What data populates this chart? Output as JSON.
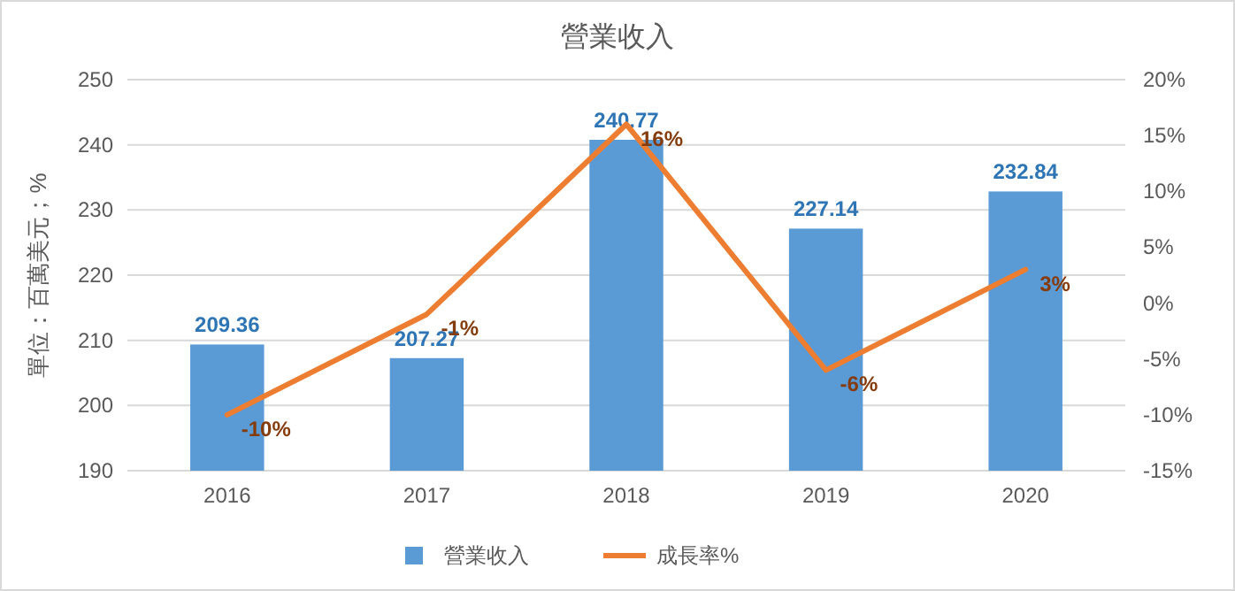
{
  "chart_data": {
    "type": "bar",
    "title": "營業收入",
    "ylabel": "單位：百萬美元；%",
    "categories": [
      "2016",
      "2017",
      "2018",
      "2019",
      "2020"
    ],
    "series": [
      {
        "name": "營業收入",
        "color": "#5b9bd5",
        "values": [
          209.36,
          207.27,
          240.77,
          227.14,
          232.84
        ],
        "value_labels": [
          "209.36",
          "207.27",
          "240.77",
          "227.14",
          "232.84"
        ]
      },
      {
        "name": "成長率%",
        "type": "line",
        "axis": "y2",
        "color": "#ed7d31",
        "values": [
          -10,
          -1,
          16,
          -6,
          3
        ],
        "value_labels": [
          "-10%",
          "-1%",
          "16%",
          "-6%",
          "3%"
        ]
      }
    ],
    "ylim": [
      190,
      250
    ],
    "yticks": [
      190,
      200,
      210,
      220,
      230,
      240,
      250
    ],
    "y2lim": [
      -15,
      20
    ],
    "y2ticks": [
      {
        "value": -15,
        "label": "-15%"
      },
      {
        "value": -10,
        "label": "-10%"
      },
      {
        "value": -5,
        "label": "-5%"
      },
      {
        "value": 0,
        "label": "0%"
      },
      {
        "value": 5,
        "label": "5%"
      },
      {
        "value": 10,
        "label": "10%"
      },
      {
        "value": 15,
        "label": "15%"
      },
      {
        "value": 20,
        "label": "20%"
      }
    ],
    "grid": "y",
    "legend": "bottom",
    "marker": "none",
    "line_style": "solid"
  }
}
